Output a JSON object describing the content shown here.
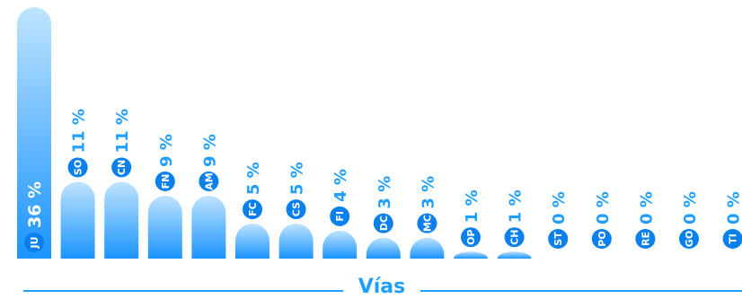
{
  "chart_data": {
    "type": "bar",
    "categories": [
      "JU",
      "SO",
      "CN",
      "FN",
      "AM",
      "FC",
      "CS",
      "FI",
      "DC",
      "MC",
      "OP",
      "CH",
      "ST",
      "PO",
      "RE",
      "GO",
      "TI"
    ],
    "values": [
      36,
      11,
      11,
      9,
      9,
      5,
      5,
      4,
      3,
      3,
      1,
      1,
      0,
      0,
      0,
      0,
      0
    ],
    "value_labels": [
      "36 %",
      "11 %",
      "11 %",
      "9 %",
      "9 %",
      "5 %",
      "5 %",
      "4 %",
      "3 %",
      "3 %",
      "1 %",
      "1 %",
      "0 %",
      "0 %",
      "0 %",
      "0 %",
      "0 %"
    ],
    "xlabel": "Vías",
    "ylim": [
      0,
      36
    ],
    "colors": {
      "bar_top": "#bfe4ff",
      "bar_bottom": "#1a94ff",
      "label": "#1f9fff",
      "badge": "#0a80ee",
      "badge_text": "#ffffff"
    }
  }
}
